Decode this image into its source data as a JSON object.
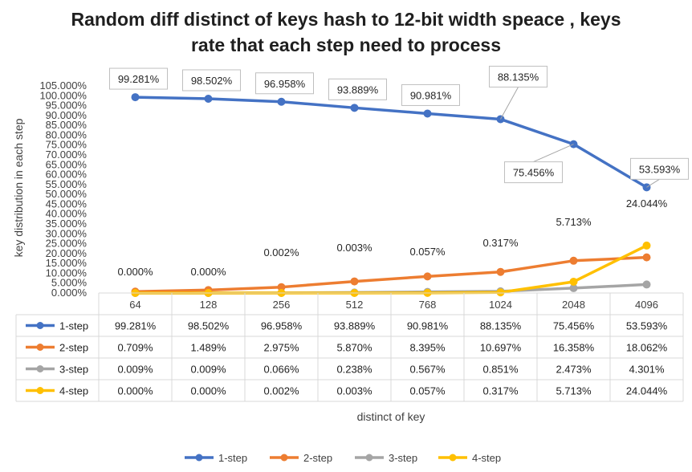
{
  "chart_data": {
    "type": "line",
    "title_line1": "Random diff distinct of keys hash to 12-bit width speace , keys",
    "title_line2": "rate that each step need to process",
    "xlabel": "distinct of key",
    "ylabel": "key distribution in each step",
    "ylim": [
      0,
      105
    ],
    "ytick_step": 5,
    "ytick_labels": [
      "0.000%",
      "5.000%",
      "10.000%",
      "15.000%",
      "20.000%",
      "25.000%",
      "30.000%",
      "35.000%",
      "40.000%",
      "45.000%",
      "50.000%",
      "55.000%",
      "60.000%",
      "65.000%",
      "70.000%",
      "75.000%",
      "80.000%",
      "85.000%",
      "90.000%",
      "95.000%",
      "100.000%",
      "105.000%"
    ],
    "categories": [
      "64",
      "128",
      "256",
      "512",
      "768",
      "1024",
      "2048",
      "4096"
    ],
    "series": [
      {
        "name": "1-step",
        "color": "#4472C4",
        "values": [
          99.281,
          98.502,
          96.958,
          93.889,
          90.981,
          88.135,
          75.456,
          53.593
        ],
        "labels": [
          "99.281%",
          "98.502%",
          "96.958%",
          "93.889%",
          "90.981%",
          "88.135%",
          "75.456%",
          "53.593%"
        ]
      },
      {
        "name": "2-step",
        "color": "#ED7D31",
        "values": [
          0.709,
          1.489,
          2.975,
          5.87,
          8.395,
          10.697,
          16.358,
          18.062
        ],
        "labels": [
          "0.709%",
          "1.489%",
          "2.975%",
          "5.870%",
          "8.395%",
          "10.697%",
          "16.358%",
          "18.062%"
        ]
      },
      {
        "name": "3-step",
        "color": "#A5A5A5",
        "values": [
          0.009,
          0.009,
          0.066,
          0.238,
          0.567,
          0.851,
          2.473,
          4.301
        ],
        "labels": [
          "0.009%",
          "0.009%",
          "0.066%",
          "0.238%",
          "0.567%",
          "0.851%",
          "2.473%",
          "4.301%"
        ]
      },
      {
        "name": "4-step",
        "color": "#FFC000",
        "values": [
          0.0,
          0.0,
          0.002,
          0.003,
          0.057,
          0.317,
          5.713,
          24.044
        ],
        "labels": [
          "0.000%",
          "0.000%",
          "0.002%",
          "0.003%",
          "0.057%",
          "0.317%",
          "5.713%",
          "24.044%"
        ]
      }
    ],
    "data_labels_shown_for": [
      "1-step",
      "4-step"
    ],
    "data_table": true,
    "legend_position": "bottom",
    "grid": false
  }
}
